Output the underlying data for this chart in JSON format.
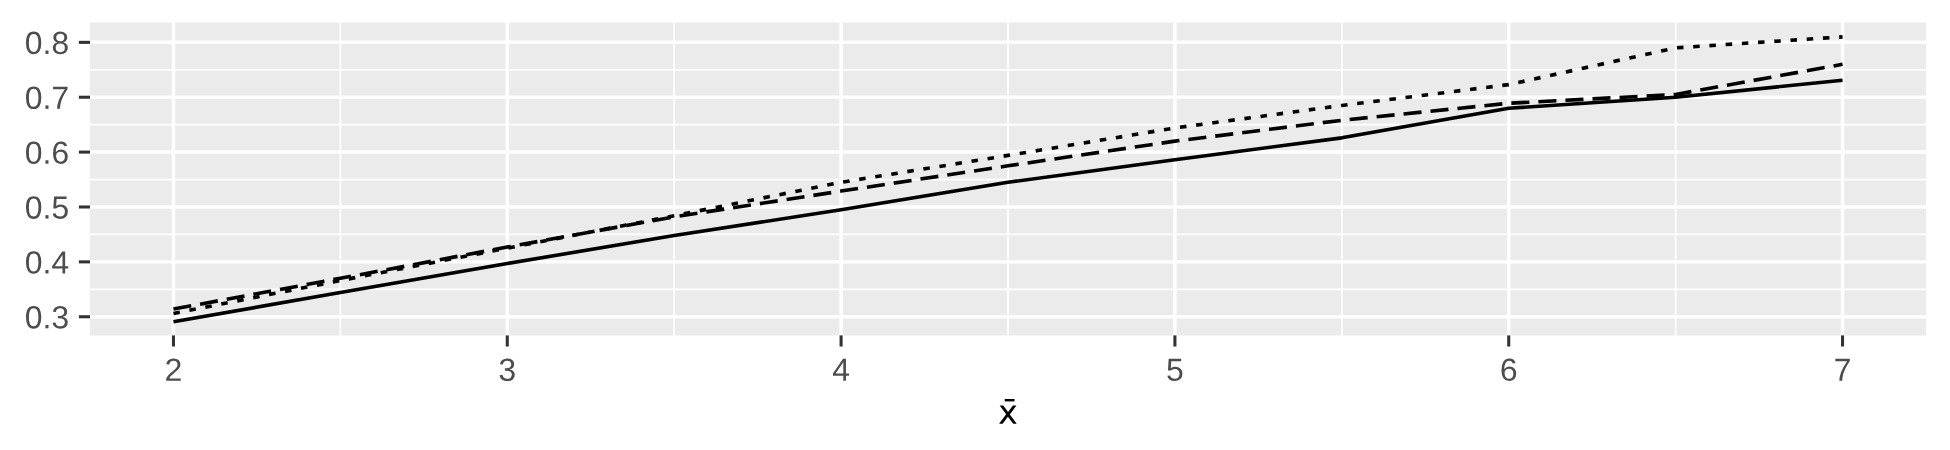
{
  "chart_data": {
    "type": "line",
    "xlabel": "x̄",
    "x": [
      2,
      2.5,
      3,
      3.5,
      4,
      4.5,
      5,
      5.5,
      6,
      6.5,
      7
    ],
    "series": [
      {
        "color": "#000000",
        "line_style": "solid",
        "values": [
          0.291,
          0.344,
          0.397,
          0.448,
          0.495,
          0.545,
          0.586,
          0.626,
          0.68,
          0.7,
          0.731
        ]
      },
      {
        "color": "#000000",
        "line_style": "dashed",
        "values": [
          0.314,
          0.37,
          0.427,
          0.482,
          0.529,
          0.575,
          0.62,
          0.658,
          0.689,
          0.705,
          0.76
        ]
      },
      {
        "color": "#000000",
        "line_style": "dotted",
        "values": [
          0.306,
          0.366,
          0.425,
          0.484,
          0.545,
          0.594,
          0.644,
          0.685,
          0.723,
          0.79,
          0.81
        ]
      }
    ],
    "xlim": [
      1.75,
      7.25
    ],
    "ylim": [
      0.266,
      0.836
    ],
    "xticks": [
      2,
      3,
      4,
      5,
      6,
      7
    ],
    "yticks": [
      0.3,
      0.4,
      0.5,
      0.6,
      0.7,
      0.8
    ],
    "grid": true
  }
}
